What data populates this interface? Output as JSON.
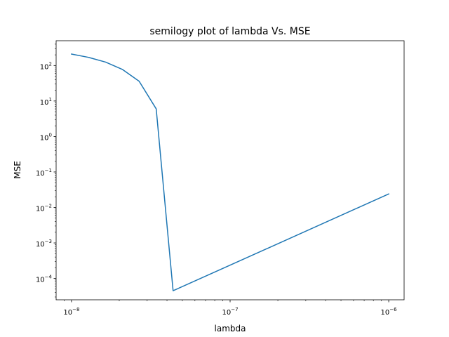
{
  "chart_data": {
    "type": "line",
    "title": "semilogy plot of lambda Vs. MSE",
    "xlabel": "lambda",
    "ylabel": "MSE",
    "xscale": "log",
    "yscale": "log",
    "xlim": [
      8e-09,
      1.25e-06
    ],
    "ylim": [
      2.5e-05,
      500
    ],
    "grid": false,
    "xticks": [
      {
        "value": 1e-08,
        "base": "10",
        "exp": "−8"
      },
      {
        "value": 1e-07,
        "base": "10",
        "exp": "−7"
      },
      {
        "value": 1e-06,
        "base": "10",
        "exp": "−6"
      }
    ],
    "yticks": [
      {
        "value": 0.0001,
        "base": "10",
        "exp": "−4"
      },
      {
        "value": 0.001,
        "base": "10",
        "exp": "−3"
      },
      {
        "value": 0.01,
        "base": "10",
        "exp": "−2"
      },
      {
        "value": 0.1,
        "base": "10",
        "exp": "−1"
      },
      {
        "value": 1,
        "base": "10",
        "exp": "0"
      },
      {
        "value": 10,
        "base": "10",
        "exp": "1"
      },
      {
        "value": 100,
        "base": "10",
        "exp": "2"
      }
    ],
    "series": [
      {
        "color": "#1f77b4",
        "x": [
          1e-08,
          1.28e-08,
          1.64e-08,
          2.09e-08,
          2.67e-08,
          3.42e-08,
          4.37e-08,
          1e-06
        ],
        "y": [
          210,
          170,
          125,
          78,
          36,
          6,
          4.5e-05,
          0.024
        ]
      }
    ]
  }
}
